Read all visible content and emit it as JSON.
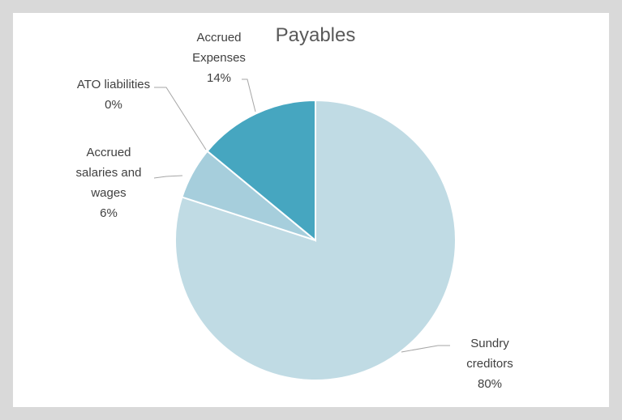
{
  "chart_data": {
    "type": "pie",
    "title": "Payables",
    "categories": [
      "Sundry creditors",
      "Accrued salaries and wages",
      "ATO liabilities",
      "Accrued Expenses"
    ],
    "values": [
      80,
      6,
      0,
      14
    ],
    "value_labels": [
      "80%",
      "6%",
      "0%",
      "14%"
    ],
    "colors": [
      "#c0dbe4",
      "#a6cedc",
      "#7dbccf",
      "#46a6c0"
    ]
  }
}
